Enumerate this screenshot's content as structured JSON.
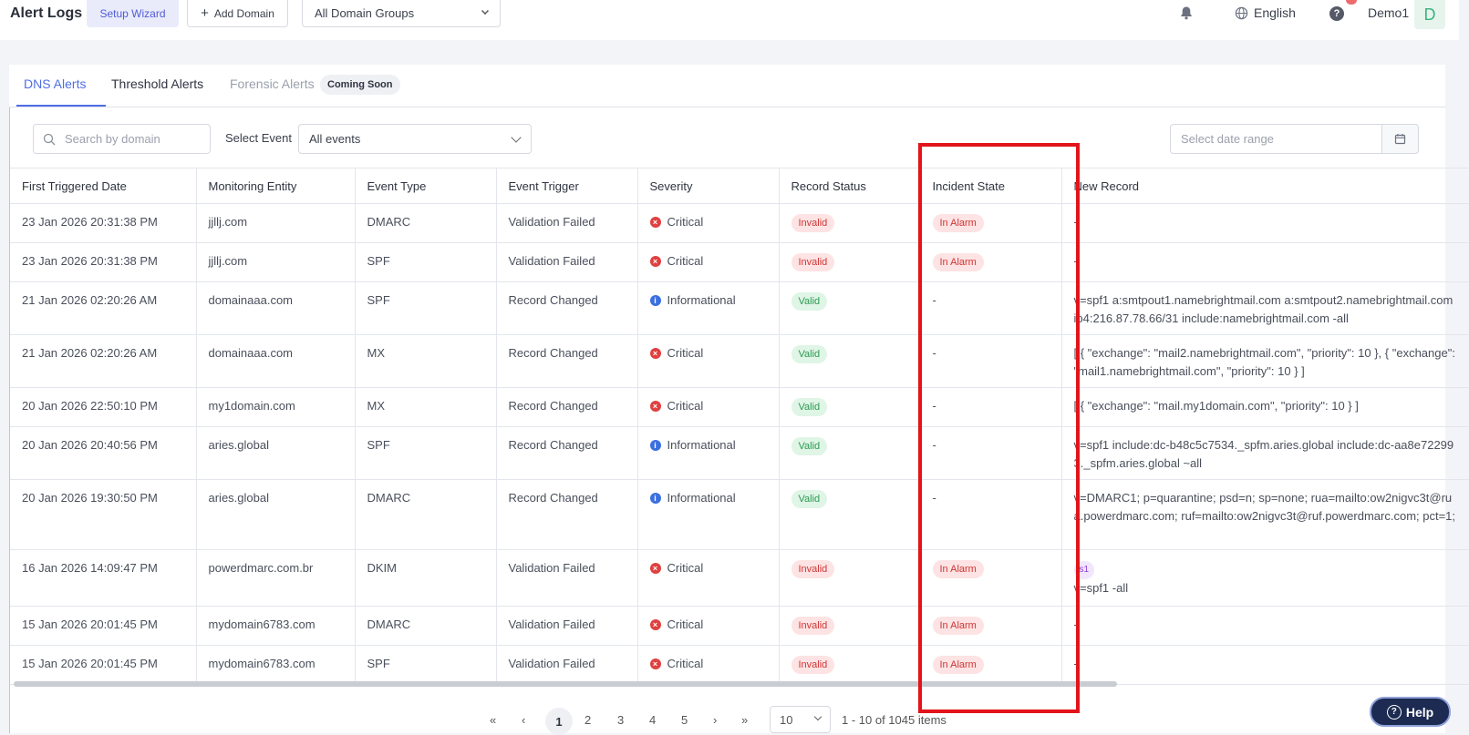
{
  "header": {
    "title": "Alert Logs",
    "setup_wizard": "Setup Wizard",
    "add_domain": "Add Domain",
    "domain_groups": "All Domain Groups",
    "language": "English",
    "user": "Demo1",
    "avatar_letter": "D"
  },
  "tabs": {
    "dns": "DNS Alerts",
    "threshold": "Threshold Alerts",
    "forensic": "Forensic Alerts",
    "coming_soon": "Coming Soon"
  },
  "filters": {
    "search_placeholder": "Search by domain",
    "event_label": "Select Event",
    "event_value": "All events",
    "date_placeholder": "Select date range"
  },
  "table": {
    "columns": [
      "First Triggered Date",
      "Monitoring Entity",
      "Event Type",
      "Event Trigger",
      "Severity",
      "Record Status",
      "Incident State",
      "New Record"
    ],
    "rows": [
      {
        "date": "23 Jan 2026 20:31:38 PM",
        "entity": "jjllj.com",
        "type": "DMARC",
        "trigger": "Validation Failed",
        "severity": "Critical",
        "status": "Invalid",
        "incident": "In Alarm",
        "record": "-",
        "selector": ""
      },
      {
        "date": "23 Jan 2026 20:31:38 PM",
        "entity": "jjllj.com",
        "type": "SPF",
        "trigger": "Validation Failed",
        "severity": "Critical",
        "status": "Invalid",
        "incident": "In Alarm",
        "record": "-",
        "selector": ""
      },
      {
        "date": "21 Jan 2026 02:20:26 AM",
        "entity": "domainaaa.com",
        "type": "SPF",
        "trigger": "Record Changed",
        "severity": "Informational",
        "status": "Valid",
        "incident": "-",
        "record": "v=spf1 a:smtpout1.namebrightmail.com a:smtpout2.namebrightmail.com ip4:216.87.78.66/31 include:namebrightmail.com -all",
        "selector": ""
      },
      {
        "date": "21 Jan 2026 02:20:26 AM",
        "entity": "domainaaa.com",
        "type": "MX",
        "trigger": "Record Changed",
        "severity": "Critical",
        "status": "Valid",
        "incident": "-",
        "record": "[ { \"exchange\": \"mail2.namebrightmail.com\", \"priority\": 10 }, { \"exchange\": \"mail1.namebrightmail.com\", \"priority\": 10 } ]",
        "selector": ""
      },
      {
        "date": "20 Jan 2026 22:50:10 PM",
        "entity": "my1domain.com",
        "type": "MX",
        "trigger": "Record Changed",
        "severity": "Critical",
        "status": "Valid",
        "incident": "-",
        "record": "[ { \"exchange\": \"mail.my1domain.com\", \"priority\": 10 } ]",
        "selector": ""
      },
      {
        "date": "20 Jan 2026 20:40:56 PM",
        "entity": "aries.global",
        "type": "SPF",
        "trigger": "Record Changed",
        "severity": "Informational",
        "status": "Valid",
        "incident": "-",
        "record": "v=spf1 include:dc-b48c5c7534._spfm.aries.global include:dc-aa8e722993._spfm.aries.global ~all",
        "selector": ""
      },
      {
        "date": "20 Jan 2026 19:30:50 PM",
        "entity": "aries.global",
        "type": "DMARC",
        "trigger": "Record Changed",
        "severity": "Informational",
        "status": "Valid",
        "incident": "-",
        "record": "v=DMARC1; p=quarantine; psd=n; sp=none; rua=mailto:ow2nigvc3t@rua.powerdmarc.com; ruf=mailto:ow2nigvc3t@ruf.powerdmarc.com; pct=1;",
        "selector": ""
      },
      {
        "date": "16 Jan 2026 14:09:47 PM",
        "entity": "powerdmarc.com.br",
        "type": "DKIM",
        "trigger": "Validation Failed",
        "severity": "Critical",
        "status": "Invalid",
        "incident": "In Alarm",
        "record": "v=spf1 -all",
        "selector": "s1"
      },
      {
        "date": "15 Jan 2026 20:01:45 PM",
        "entity": "mydomain6783.com",
        "type": "DMARC",
        "trigger": "Validation Failed",
        "severity": "Critical",
        "status": "Invalid",
        "incident": "In Alarm",
        "record": "-",
        "selector": ""
      },
      {
        "date": "15 Jan 2026 20:01:45 PM",
        "entity": "mydomain6783.com",
        "type": "SPF",
        "trigger": "Validation Failed",
        "severity": "Critical",
        "status": "Invalid",
        "incident": "In Alarm",
        "record": "-",
        "selector": ""
      }
    ]
  },
  "pagination": {
    "first": "«",
    "prev": "‹",
    "pages": [
      "1",
      "2",
      "3",
      "4",
      "5"
    ],
    "current": "1",
    "next": "›",
    "last": "»",
    "page_size": "10",
    "summary": "1 - 10 of 1045 items"
  },
  "help_button": "Help",
  "icons": {
    "bell": "bell-icon",
    "globe": "globe-icon",
    "help": "help-icon",
    "search": "search-icon",
    "calendar": "calendar-icon"
  }
}
